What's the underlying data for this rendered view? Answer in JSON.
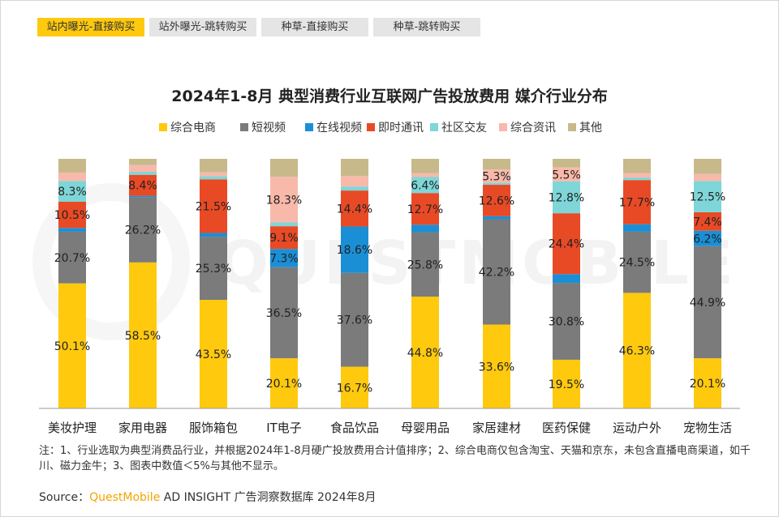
{
  "tabs": [
    {
      "label": "站内曝光-直接购买",
      "active": true
    },
    {
      "label": "站外曝光-跳转购买",
      "active": false
    },
    {
      "label": "种草-直接购买",
      "active": false
    },
    {
      "label": "种草-跳转购买",
      "active": false
    }
  ],
  "watermark": "QUESTMOBILE",
  "chart_data": {
    "type": "bar",
    "stacked": true,
    "title": "2024年1-8月 典型消费行业互联网广告投放费用 媒介行业分布",
    "legend_position": "top",
    "ylim": [
      0,
      100
    ],
    "categories": [
      "美妆护理",
      "家用电器",
      "服饰箱包",
      "IT电子",
      "食品饮品",
      "母婴用品",
      "家居建材",
      "医药保健",
      "运动户外",
      "宠物生活"
    ],
    "series": [
      {
        "name": "综合电商",
        "color": "#ffc90e",
        "values": [
          50.1,
          58.5,
          43.5,
          20.1,
          16.7,
          44.8,
          33.6,
          19.5,
          46.3,
          20.1
        ]
      },
      {
        "name": "短视频",
        "color": "#7b7b7b",
        "values": [
          20.7,
          26.2,
          25.3,
          36.5,
          37.6,
          25.8,
          42.2,
          30.8,
          24.5,
          44.9
        ]
      },
      {
        "name": "在线视频",
        "color": "#1b8fd6",
        "values": [
          1.5,
          0.5,
          1.5,
          7.3,
          18.6,
          3.0,
          1.2,
          3.5,
          3.0,
          6.2
        ]
      },
      {
        "name": "即时通讯",
        "color": "#e84a26",
        "values": [
          10.5,
          8.4,
          21.5,
          9.1,
          14.4,
          12.7,
          12.6,
          24.4,
          17.7,
          7.4
        ]
      },
      {
        "name": "社区交友",
        "color": "#7ed6d8",
        "values": [
          8.3,
          1.2,
          1.2,
          1.5,
          1.6,
          6.4,
          0.8,
          12.8,
          1.0,
          12.5
        ]
      },
      {
        "name": "综合资讯",
        "color": "#f8b9aa",
        "values": [
          3.4,
          2.7,
          1.6,
          18.3,
          4.2,
          1.5,
          5.3,
          5.5,
          1.8,
          2.8
        ]
      },
      {
        "name": "其他",
        "color": "#c8b98b",
        "values": [
          5.5,
          2.5,
          5.4,
          7.2,
          6.9,
          5.8,
          4.3,
          3.5,
          5.7,
          6.1
        ]
      }
    ],
    "label_threshold": 5,
    "label_format": "{v}%"
  },
  "note": "注：1、行业选取为典型消费品行业，并根据2024年1-8月硬广投放费用合计值排序；2、综合电商仅包含淘宝、天猫和京东，未包含直播电商渠道，如千川、磁力金牛；3、图表中数值＜5%与其他不显示。",
  "source": {
    "prefix": "Source：",
    "brand": "QuestMobile",
    "rest": " AD INSIGHT 广告洞察数据库 2024年8月"
  }
}
